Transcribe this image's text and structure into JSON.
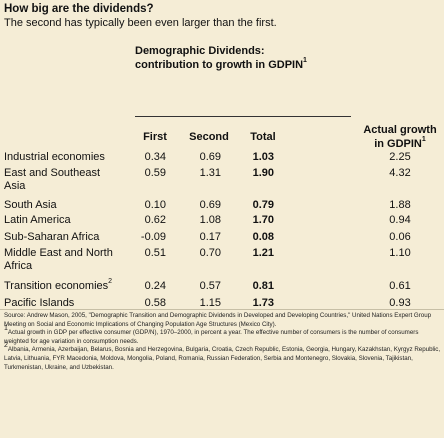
{
  "header": {
    "title": "How big are the dividends?",
    "subtitle": "The second has typically been even larger than the first."
  },
  "table": {
    "group_title": "Demographic Dividends: contribution to growth in GDPIN",
    "group_title_sup": "1",
    "actual_title": "Actual growth in GDPIN",
    "actual_title_sup": "1",
    "columns": {
      "first": "First",
      "second": "Second",
      "total": "Total"
    },
    "rows": [
      {
        "label": "Industrial economies",
        "sup": "",
        "first": "0.34",
        "second": "0.69",
        "total": "1.03",
        "actual": "2.25"
      },
      {
        "label": "East and Southeast Asia",
        "sup": "",
        "first": "0.59",
        "second": "1.31",
        "total": "1.90",
        "actual": "4.32"
      },
      {
        "label": "South Asia",
        "sup": "",
        "first": "0.10",
        "second": "0.69",
        "total": "0.79",
        "actual": "1.88"
      },
      {
        "label": "Latin America",
        "sup": "",
        "first": "0.62",
        "second": "1.08",
        "total": "1.70",
        "actual": "0.94"
      },
      {
        "label": "Sub-Saharan Africa",
        "sup": "",
        "first": "-0.09",
        "second": "0.17",
        "total": "0.08",
        "actual": "0.06"
      },
      {
        "label": "Middle East and North Africa",
        "sup": "",
        "first": "0.51",
        "second": "0.70",
        "total": "1.21",
        "actual": "1.10"
      },
      {
        "label": "Transition economies",
        "sup": "2",
        "first": "0.24",
        "second": "0.57",
        "total": "0.81",
        "actual": "0.61"
      },
      {
        "label": "Pacific Islands",
        "sup": "",
        "first": "0.58",
        "second": "1.15",
        "total": "1.73",
        "actual": "0.93"
      }
    ]
  },
  "notes": {
    "source": "Source: Andrew Mason, 2005, \"Demographic Transition and Demographic Dividends in Developed and Developing Countries,\" United Nations Expert Group Meeting on Social and Economic Implications of Changing Population Age Structures (Mexico City).",
    "note1_sup": "1",
    "note1": "Actual growth in GDP per effective consumer (GDP/N), 1970–2000, in percent a year. The effective number of consumers is the number of consumers weighted for age variation in consumption needs.",
    "note2_sup": "2",
    "note2": "Albania, Armenia, Azerbaijan, Belarus, Bosnia and Herzegovina, Bulgaria, Croatia, Czech Republic, Estonia, Georgia, Hungary, Kazakhstan, Kyrgyz Republic, Latvia, Lithuania, FYR Macedonia, Moldova, Mongolia, Poland, Romania, Russian Federation, Serbia and Montenegro, Slovakia, Slovenia, Tajikistan, Turkmenistan, Ukraine, and Uzbekistan."
  }
}
